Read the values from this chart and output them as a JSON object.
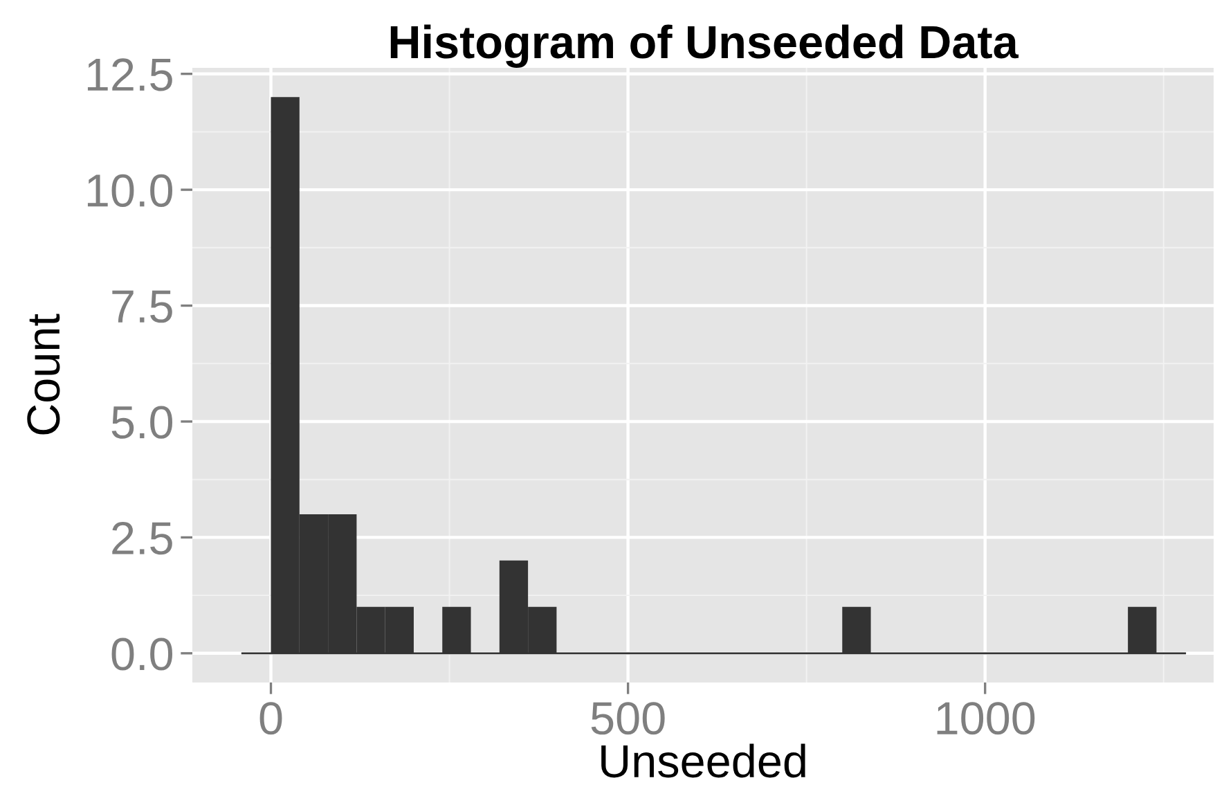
{
  "chart_data": {
    "type": "histogram",
    "title": "Histogram of Unseeded Data",
    "xlabel": "Unseeded",
    "ylabel": "Count",
    "bins": [
      -40,
      0,
      40,
      80,
      120,
      160,
      200,
      240,
      280,
      320,
      360,
      400,
      440,
      480,
      520,
      560,
      600,
      640,
      680,
      720,
      760,
      800,
      840,
      880,
      920,
      960,
      1000,
      1040,
      1080,
      1120,
      1160,
      1200,
      1240,
      1280
    ],
    "values": [
      0,
      12,
      3,
      3,
      1,
      1,
      0,
      1,
      0,
      2,
      1,
      0,
      0,
      0,
      0,
      0,
      0,
      0,
      0,
      0,
      0,
      1,
      0,
      0,
      0,
      0,
      0,
      0,
      0,
      0,
      0,
      1,
      0
    ],
    "color": "#333333",
    "xlim": [
      -110,
      1320
    ],
    "ylim": [
      -0.63,
      12.63
    ],
    "xticks": [
      0,
      500,
      1000
    ],
    "yticks": [
      {
        "value": 0,
        "label": "0.0"
      },
      {
        "value": 2.5,
        "label": "2.5"
      },
      {
        "value": 5,
        "label": "5.0"
      },
      {
        "value": 7.5,
        "label": "7.5"
      },
      {
        "value": 10,
        "label": "10.0"
      },
      {
        "value": 12.5,
        "label": "12.5"
      }
    ],
    "grid": true
  }
}
